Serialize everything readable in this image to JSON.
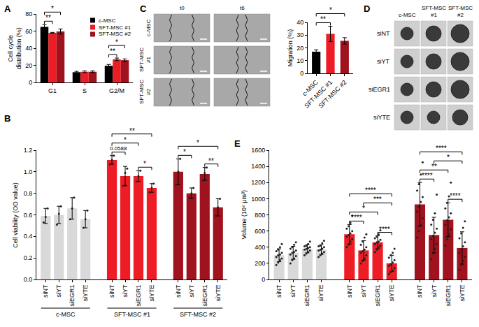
{
  "chart_data": [
    {
      "panel": "A",
      "type": "bar",
      "y_label": "Cell cycle distribution (%)",
      "categories": [
        "G1",
        "S",
        "G2/M"
      ],
      "series": [
        {
          "name": "c-MSC",
          "color": "#000000",
          "values": [
            65,
            12,
            19.5
          ],
          "errors": [
            2.5,
            1,
            1.5
          ]
        },
        {
          "name": "SFT-MSC #1",
          "color": "#ee1c25",
          "values": [
            58,
            12.5,
            27
          ],
          "errors": [
            0.5,
            1,
            1.5
          ]
        },
        {
          "name": "SFT-MSC #2",
          "color": "#a0121d",
          "values": [
            59.5,
            12.5,
            26
          ],
          "errors": [
            3,
            1,
            1.5
          ]
        }
      ],
      "ylim": [
        0,
        80
      ],
      "yticks": [
        0,
        20,
        40,
        60,
        80
      ],
      "legend": "upper right",
      "significance": [
        {
          "category": "G1",
          "from": "c-MSC",
          "to": "SFT-MSC #1",
          "label": "**"
        },
        {
          "category": "G1",
          "from": "c-MSC",
          "to": "SFT-MSC #2",
          "label": "*"
        },
        {
          "category": "G2/M",
          "from": "c-MSC",
          "to": "SFT-MSC #1",
          "label": "**"
        },
        {
          "category": "G2/M",
          "from": "c-MSC",
          "to": "SFT-MSC #2",
          "label": "*"
        }
      ]
    },
    {
      "panel": "B",
      "type": "bar",
      "y_label": "Cell viability (OD value)",
      "categories": [
        "siNT",
        "siYT",
        "siEGR1",
        "siYTE"
      ],
      "series": [
        {
          "name": "c-MSC",
          "color": "#d9d9d9",
          "values": [
            0.59,
            0.6,
            0.66,
            0.56
          ],
          "errors": [
            0.07,
            0.08,
            0.1,
            0.08
          ],
          "points": [
            [
              0.53,
              0.58,
              0.66
            ],
            [
              0.51,
              0.61,
              0.68
            ],
            [
              0.56,
              0.66,
              0.76
            ],
            [
              0.48,
              0.56,
              0.64
            ]
          ]
        },
        {
          "name": "SFT-MSC #1",
          "color": "#ee1c25",
          "values": [
            1.11,
            0.96,
            0.96,
            0.85
          ],
          "errors": [
            0.04,
            0.09,
            0.05,
            0.04
          ],
          "points": [
            [
              1.07,
              1.11,
              1.15
            ],
            [
              0.87,
              0.99,
              1.03
            ],
            [
              0.91,
              0.96,
              1.01
            ],
            [
              0.81,
              0.85,
              0.89
            ]
          ],
          "significance": [
            {
              "from": "siNT",
              "to": "siYT",
              "label": "0.0588"
            },
            {
              "from": "siNT",
              "to": "siEGR1",
              "label": "*"
            },
            {
              "from": "siNT",
              "to": "siYTE",
              "label": "**"
            },
            {
              "from": "siEGR1",
              "to": "siYTE",
              "label": "*"
            }
          ]
        },
        {
          "name": "SFT-MSC #2",
          "color": "#a0121d",
          "values": [
            1.0,
            0.8,
            0.98,
            0.67
          ],
          "errors": [
            0.12,
            0.05,
            0.06,
            0.08
          ],
          "points": [
            [
              0.88,
              1.0,
              1.12
            ],
            [
              0.76,
              0.8,
              0.85
            ],
            [
              0.92,
              0.99,
              1.04
            ],
            [
              0.59,
              0.67,
              0.75
            ]
          ],
          "significance": [
            {
              "from": "siNT",
              "to": "siYT",
              "label": "*"
            },
            {
              "from": "siNT",
              "to": "siYTE",
              "label": "*"
            },
            {
              "from": "siEGR1",
              "to": "siYTE",
              "label": "**"
            }
          ]
        }
      ],
      "ylim": [
        0,
        1.2
      ],
      "yticks": [
        {
          "value": 0,
          "label": "0.0"
        },
        0.2,
        0.4,
        0.6,
        0.8,
        {
          "value": 1,
          "label": "1.0"
        },
        1.2
      ]
    },
    {
      "panel": "C",
      "type": "image_grid",
      "columns": [
        "t0",
        "t6"
      ],
      "rows": [
        "c-MSC",
        "SFT-MSC #1",
        "SFT-MSC #2"
      ]
    },
    {
      "type": "bar",
      "y_label": "Migration (%)",
      "categories": [
        "c-MSC",
        "SFT-MSC #1",
        "SFT-MSC #2"
      ],
      "colors": [
        "#000000",
        "#ee1c25",
        "#a0121d"
      ],
      "values": [
        17,
        31,
        25.5
      ],
      "errors": [
        1.5,
        6,
        2.5
      ],
      "ylim": [
        0,
        40
      ],
      "yticks": [
        0,
        10,
        20,
        30,
        40
      ],
      "significance": [
        {
          "from": "c-MSC",
          "to": "SFT-MSC #1",
          "label": "**"
        },
        {
          "from": "c-MSC",
          "to": "SFT-MSC #2",
          "label": "*"
        }
      ]
    },
    {
      "panel": "D",
      "type": "image_grid",
      "columns": [
        "c-MSC",
        "SFT-MSC #1",
        "SFT-MSC #2"
      ],
      "rows": [
        "siNT",
        "siYT",
        "siEGR1",
        "siYTE"
      ]
    },
    {
      "panel": "E",
      "type": "bar",
      "y_label": "Volume (10⁶ μm³)",
      "categories": [
        "siNT",
        "siYT",
        "siEGR1",
        "siYTE"
      ],
      "series": [
        {
          "color": "#d9d9d9",
          "values": [
            300,
            330,
            380,
            370
          ],
          "errors": [
            80,
            80,
            50,
            60
          ],
          "points": [
            [
              180,
              210,
              240,
              260,
              280,
              300,
              310,
              330,
              350,
              370,
              400,
              440
            ],
            [
              200,
              240,
              260,
              290,
              310,
              330,
              340,
              360,
              380,
              400,
              430,
              460
            ],
            [
              300,
              320,
              340,
              360,
              370,
              380,
              390,
              400,
              410,
              420,
              440,
              470
            ],
            [
              280,
              300,
              320,
              340,
              360,
              370,
              380,
              400,
              410,
              420,
              450,
              480
            ]
          ]
        },
        {
          "color": "#ee1c25",
          "values": [
            560,
            360,
            460,
            200
          ],
          "errors": [
            120,
            120,
            80,
            100
          ],
          "points": [
            [
              400,
              430,
              470,
              500,
              530,
              550,
              570,
              600,
              630,
              660,
              700,
              790
            ],
            [
              200,
              230,
              260,
              300,
              330,
              350,
              370,
              400,
              430,
              470,
              520,
              560
            ],
            [
              340,
              370,
              400,
              420,
              440,
              460,
              470,
              490,
              510,
              530,
              560,
              610
            ],
            [
              70,
              90,
              110,
              140,
              170,
              190,
              210,
              240,
              270,
              300,
              330,
              380
            ]
          ],
          "significance": [
            {
              "from": "siNT",
              "to": "siYT",
              "label": "****"
            },
            {
              "from": "siNT",
              "to": "siEGR1",
              "label": "*"
            },
            {
              "from": "siNT",
              "to": "siYTE",
              "label": "****"
            },
            {
              "from": "siYT",
              "to": "siYTE",
              "label": "***"
            },
            {
              "from": "siEGR1",
              "to": "siYTE",
              "label": "****"
            }
          ]
        },
        {
          "color": "#a0121d",
          "values": [
            930,
            550,
            740,
            390
          ],
          "errors": [
            270,
            220,
            210,
            200
          ],
          "points": [
            [
              520,
              600,
              680,
              760,
              840,
              900,
              960,
              1020,
              1100,
              1180,
              1300,
              1450
            ],
            [
              250,
              320,
              380,
              440,
              500,
              540,
              580,
              630,
              680,
              740,
              820,
              1050
            ],
            [
              420,
              500,
              560,
              620,
              680,
              730,
              770,
              820,
              880,
              950,
              1030,
              1200
            ],
            [
              120,
              180,
              230,
              280,
              330,
              370,
              410,
              460,
              510,
              570,
              640,
              720
            ]
          ],
          "significance": [
            {
              "from": "siNT",
              "to": "siYT",
              "label": "****"
            },
            {
              "from": "siNT",
              "to": "siEGR1",
              "label": "**"
            },
            {
              "from": "siNT",
              "to": "siYTE",
              "label": "****"
            },
            {
              "from": "siYT",
              "to": "siYTE",
              "label": "*"
            },
            {
              "from": "siEGR1",
              "to": "siYTE",
              "label": "****"
            }
          ]
        }
      ],
      "ylim": [
        0,
        1600
      ],
      "yticks": [
        0,
        200,
        400,
        600,
        800,
        1000,
        1200,
        1400,
        1600
      ]
    }
  ]
}
